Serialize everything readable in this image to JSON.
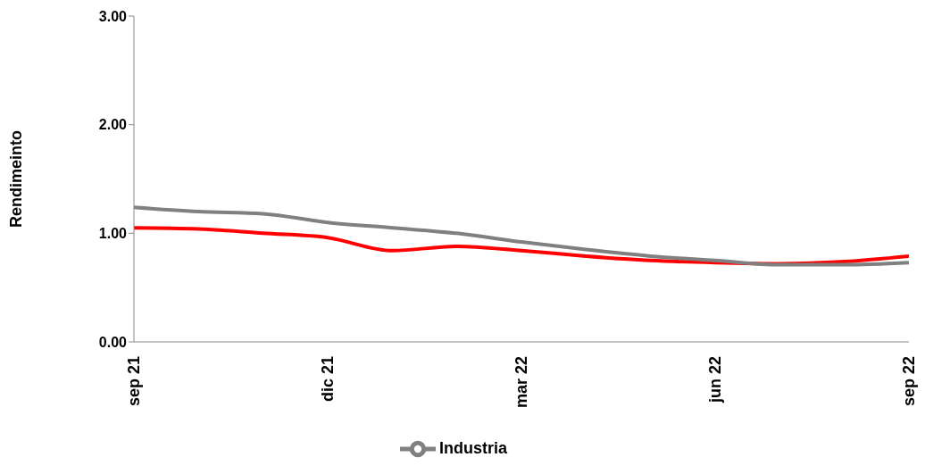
{
  "chart_data": {
    "type": "line",
    "ylabel": "Rendimeinto",
    "categories": [
      "sep 21",
      null,
      null,
      "dic 21",
      null,
      null,
      "mar 22",
      null,
      null,
      "jun 22",
      null,
      null,
      "sep 22"
    ],
    "series": [
      {
        "color": "#ff0000",
        "values": [
          1.05,
          1.04,
          1.0,
          0.96,
          0.84,
          0.88,
          0.84,
          0.79,
          0.75,
          0.73,
          0.72,
          0.74,
          0.79
        ]
      },
      {
        "name": "Industria",
        "color": "#808080",
        "values": [
          1.24,
          1.2,
          1.18,
          1.1,
          1.05,
          1.0,
          0.92,
          0.85,
          0.79,
          0.75,
          0.71,
          0.71,
          0.73
        ]
      }
    ],
    "ylim": [
      0,
      3
    ],
    "yticks": [
      {
        "value": 0,
        "label": "0.00"
      },
      {
        "value": 1,
        "label": "1.00"
      },
      {
        "value": 2,
        "label": "2.00"
      },
      {
        "value": 3,
        "label": "3.00"
      }
    ],
    "grid": false,
    "legend": "bottom",
    "marker": "none",
    "line_style": "solid"
  }
}
